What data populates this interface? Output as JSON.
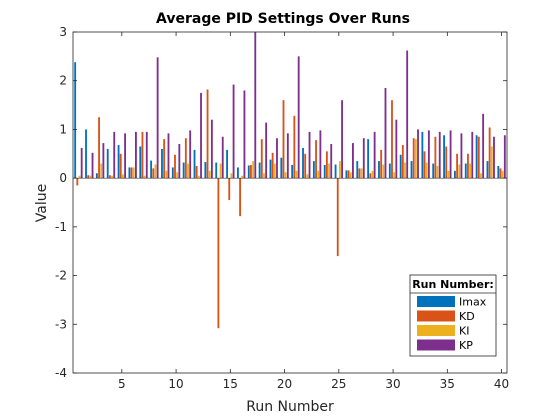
{
  "chart_data": {
    "type": "bar",
    "title": "Average PID Settings Over Runs",
    "xlabel": "Run Number",
    "ylabel": "Value",
    "xlim": [
      0.5,
      40.5
    ],
    "ylim": [
      -4,
      3
    ],
    "xticks": [
      "5",
      "10",
      "15",
      "20",
      "25",
      "30",
      "35",
      "40"
    ],
    "yticks": [
      "-4",
      "-3",
      "-2",
      "-1",
      "0",
      "1",
      "2",
      "3"
    ],
    "legend_title": "Run Number:",
    "legend_position": "bottom-right",
    "grid": false,
    "runs": [
      1,
      2,
      3,
      4,
      5,
      6,
      7,
      8,
      9,
      10,
      11,
      12,
      13,
      14,
      15,
      16,
      17,
      18,
      19,
      20,
      21,
      22,
      23,
      24,
      25,
      26,
      27,
      28,
      29,
      30,
      31,
      32,
      33,
      34,
      35,
      36,
      37,
      38,
      39,
      40
    ],
    "series": [
      {
        "name": "Imax",
        "color": "#0072BD",
        "values": [
          2.38,
          1.0,
          0.1,
          0.6,
          0.68,
          0.22,
          0.65,
          0.36,
          0.6,
          0.22,
          0.32,
          0.58,
          0.33,
          0.32,
          0.58,
          0.22,
          0.26,
          0.32,
          0.38,
          0.42,
          0.27,
          0.62,
          0.35,
          0.27,
          0.28,
          0.16,
          0.35,
          0.8,
          0.35,
          0.3,
          0.48,
          0.35,
          0.95,
          0.3,
          0.88,
          0.15,
          0.3,
          0.88,
          0.35,
          0.25
        ]
      },
      {
        "name": "KD",
        "color": "#D95319",
        "values": [
          -0.15,
          0.06,
          1.25,
          0.06,
          0.5,
          0.22,
          0.95,
          0.2,
          0.8,
          0.48,
          0.82,
          0.25,
          1.82,
          -3.08,
          -0.45,
          -0.78,
          0.27,
          0.8,
          0.52,
          1.6,
          1.28,
          0.5,
          0.78,
          0.55,
          -1.6,
          0.16,
          0.2,
          0.1,
          0.58,
          1.6,
          0.68,
          0.82,
          0.55,
          0.85,
          0.65,
          0.5,
          0.5,
          0.85,
          1.04,
          0.2
        ]
      },
      {
        "name": "KI",
        "color": "#EDB120",
        "values": [
          0.05,
          0.05,
          0.3,
          0.05,
          0.08,
          0.22,
          0.05,
          0.28,
          0.15,
          0.12,
          0.3,
          0.05,
          0.15,
          0.3,
          0.1,
          0.05,
          0.35,
          0.1,
          0.3,
          0.12,
          0.15,
          0.08,
          0.15,
          0.3,
          0.35,
          0.12,
          0.2,
          0.15,
          0.28,
          0.12,
          0.32,
          0.8,
          0.32,
          0.25,
          0.15,
          0.28,
          0.3,
          0.1,
          0.65,
          0.15
        ]
      },
      {
        "name": "KP",
        "color": "#7E2F8E",
        "values": [
          0.62,
          0.52,
          0.72,
          0.95,
          0.92,
          0.95,
          0.95,
          2.48,
          0.92,
          0.7,
          0.98,
          1.75,
          1.2,
          0.85,
          1.92,
          1.8,
          3.0,
          1.14,
          0.82,
          0.92,
          2.5,
          0.95,
          0.98,
          0.7,
          1.6,
          0.72,
          0.82,
          0.95,
          1.85,
          1.2,
          2.62,
          1.0,
          0.98,
          0.95,
          0.98,
          0.92,
          0.95,
          1.32,
          0.85,
          0.88
        ]
      }
    ]
  }
}
